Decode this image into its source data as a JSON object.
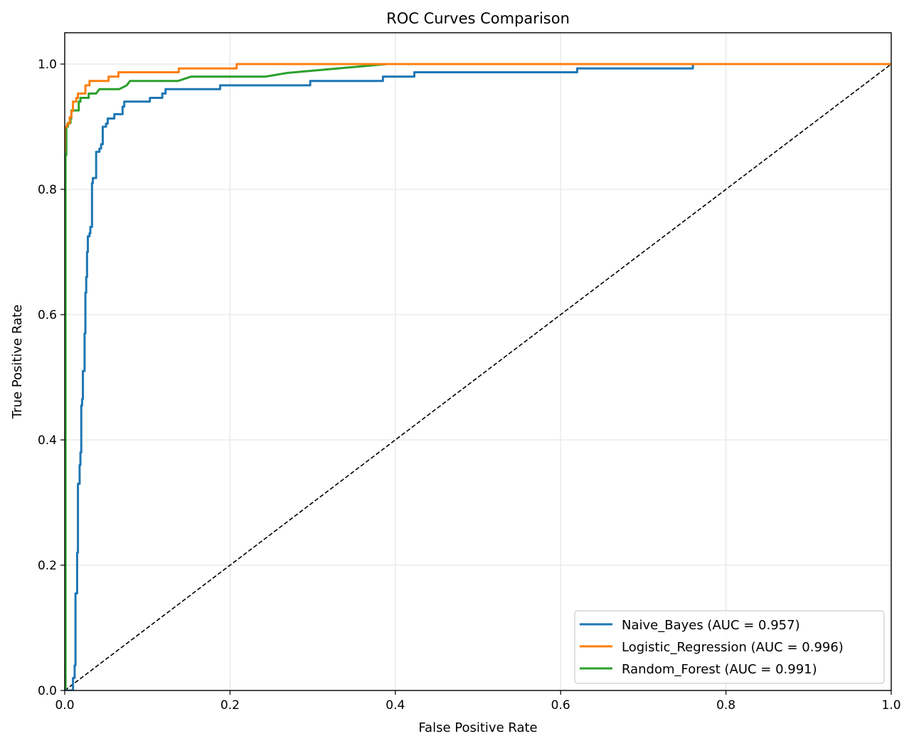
{
  "chart_data": {
    "type": "line",
    "title": "ROC Curves Comparison",
    "xlabel": "False Positive Rate",
    "ylabel": "True Positive Rate",
    "xlim": [
      0,
      1
    ],
    "ylim": [
      0,
      1.05
    ],
    "xticks": [
      0.0,
      0.2,
      0.4,
      0.6,
      0.8,
      1.0
    ],
    "yticks": [
      0.0,
      0.2,
      0.4,
      0.6,
      0.8,
      1.0
    ],
    "xtick_labels": [
      "0.0",
      "0.2",
      "0.4",
      "0.6",
      "0.8",
      "1.0"
    ],
    "ytick_labels": [
      "0.0",
      "0.2",
      "0.4",
      "0.6",
      "0.8",
      "1.0"
    ],
    "grid": true,
    "legend_position": "lower-right",
    "series": [
      {
        "name": "Naive_Bayes (AUC = 0.957)",
        "color": "#1f77b4",
        "points": [
          [
            0,
            0
          ],
          [
            0.01,
            0
          ],
          [
            0.01,
            0.02
          ],
          [
            0.012,
            0.02
          ],
          [
            0.012,
            0.04
          ],
          [
            0.013,
            0.04
          ],
          [
            0.013,
            0.155
          ],
          [
            0.015,
            0.155
          ],
          [
            0.015,
            0.22
          ],
          [
            0.016,
            0.22
          ],
          [
            0.016,
            0.33
          ],
          [
            0.018,
            0.33
          ],
          [
            0.018,
            0.335
          ],
          [
            0.018,
            0.36
          ],
          [
            0.019,
            0.36
          ],
          [
            0.019,
            0.38
          ],
          [
            0.02,
            0.38
          ],
          [
            0.02,
            0.455
          ],
          [
            0.021,
            0.455
          ],
          [
            0.021,
            0.465
          ],
          [
            0.022,
            0.465
          ],
          [
            0.022,
            0.51
          ],
          [
            0.024,
            0.51
          ],
          [
            0.024,
            0.57
          ],
          [
            0.025,
            0.57
          ],
          [
            0.025,
            0.635
          ],
          [
            0.026,
            0.635
          ],
          [
            0.026,
            0.66
          ],
          [
            0.027,
            0.66
          ],
          [
            0.027,
            0.7
          ],
          [
            0.028,
            0.7
          ],
          [
            0.028,
            0.725
          ],
          [
            0.03,
            0.725
          ],
          [
            0.03,
            0.73
          ],
          [
            0.031,
            0.73
          ],
          [
            0.031,
            0.74
          ],
          [
            0.033,
            0.74
          ],
          [
            0.033,
            0.81
          ],
          [
            0.034,
            0.81
          ],
          [
            0.034,
            0.818
          ],
          [
            0.038,
            0.818
          ],
          [
            0.038,
            0.86
          ],
          [
            0.042,
            0.86
          ],
          [
            0.042,
            0.865
          ],
          [
            0.044,
            0.865
          ],
          [
            0.044,
            0.872
          ],
          [
            0.046,
            0.872
          ],
          [
            0.046,
            0.9
          ],
          [
            0.05,
            0.9
          ],
          [
            0.05,
            0.905
          ],
          [
            0.052,
            0.905
          ],
          [
            0.052,
            0.913
          ],
          [
            0.06,
            0.913
          ],
          [
            0.06,
            0.92
          ],
          [
            0.07,
            0.92
          ],
          [
            0.07,
            0.932
          ],
          [
            0.072,
            0.932
          ],
          [
            0.072,
            0.94
          ],
          [
            0.103,
            0.94
          ],
          [
            0.103,
            0.946
          ],
          [
            0.118,
            0.946
          ],
          [
            0.118,
            0.953
          ],
          [
            0.122,
            0.953
          ],
          [
            0.122,
            0.96
          ],
          [
            0.188,
            0.96
          ],
          [
            0.188,
            0.966
          ],
          [
            0.297,
            0.966
          ],
          [
            0.297,
            0.973
          ],
          [
            0.385,
            0.973
          ],
          [
            0.385,
            0.98
          ],
          [
            0.423,
            0.98
          ],
          [
            0.423,
            0.987
          ],
          [
            0.62,
            0.987
          ],
          [
            0.62,
            0.993
          ],
          [
            0.76,
            0.993
          ],
          [
            0.76,
            1.0
          ],
          [
            1.0,
            1.0
          ]
        ]
      },
      {
        "name": "Logistic_Regression (AUC = 0.996)",
        "color": "#ff7f0e",
        "points": [
          [
            0,
            0.86
          ],
          [
            0,
            0.9
          ],
          [
            0.003,
            0.9
          ],
          [
            0.003,
            0.905
          ],
          [
            0.006,
            0.905
          ],
          [
            0.006,
            0.915
          ],
          [
            0.008,
            0.915
          ],
          [
            0.008,
            0.925
          ],
          [
            0.01,
            0.925
          ],
          [
            0.01,
            0.94
          ],
          [
            0.014,
            0.94
          ],
          [
            0.014,
            0.946
          ],
          [
            0.016,
            0.946
          ],
          [
            0.016,
            0.953
          ],
          [
            0.025,
            0.953
          ],
          [
            0.025,
            0.966
          ],
          [
            0.03,
            0.966
          ],
          [
            0.03,
            0.973
          ],
          [
            0.053,
            0.973
          ],
          [
            0.053,
            0.98
          ],
          [
            0.065,
            0.98
          ],
          [
            0.065,
            0.987
          ],
          [
            0.138,
            0.987
          ],
          [
            0.138,
            0.993
          ],
          [
            0.208,
            0.993
          ],
          [
            0.208,
            1.0
          ],
          [
            1.0,
            1.0
          ]
        ]
      },
      {
        "name": "Random_Forest (AUC = 0.991)",
        "color": "#2ca02c",
        "points": [
          [
            0,
            0
          ],
          [
            0.001,
            0
          ],
          [
            0.001,
            0.855
          ],
          [
            0.002,
            0.855
          ],
          [
            0.002,
            0.9
          ],
          [
            0.004,
            0.9
          ],
          [
            0.004,
            0.906
          ],
          [
            0.007,
            0.906
          ],
          [
            0.007,
            0.913
          ],
          [
            0.008,
            0.913
          ],
          [
            0.008,
            0.926
          ],
          [
            0.017,
            0.926
          ],
          [
            0.017,
            0.94
          ],
          [
            0.019,
            0.94
          ],
          [
            0.019,
            0.946
          ],
          [
            0.029,
            0.946
          ],
          [
            0.029,
            0.953
          ],
          [
            0.038,
            0.953
          ],
          [
            0.042,
            0.96
          ],
          [
            0.066,
            0.96
          ],
          [
            0.075,
            0.966
          ],
          [
            0.079,
            0.973
          ],
          [
            0.137,
            0.973
          ],
          [
            0.153,
            0.98
          ],
          [
            0.243,
            0.98
          ],
          [
            0.27,
            0.986
          ],
          [
            0.39,
            1.0
          ],
          [
            1.0,
            1.0
          ]
        ]
      },
      {
        "name": "",
        "color": "#000000",
        "dashed": true,
        "points": [
          [
            0,
            0
          ],
          [
            1,
            1
          ]
        ]
      }
    ]
  }
}
